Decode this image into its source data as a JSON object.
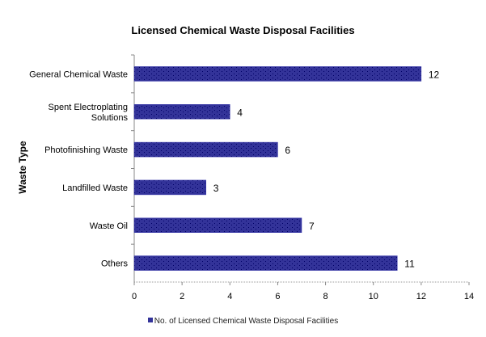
{
  "chart_data": {
    "type": "bar",
    "orientation": "horizontal",
    "title": "Licensed Chemical Waste Disposal Facilities",
    "xlabel": "",
    "ylabel": "Waste Type",
    "categories": [
      "General Chemical Waste",
      "Spent Electroplating Solutions",
      "Photofinishing Waste",
      "Landfilled Waste",
      "Waste Oil",
      "Others"
    ],
    "series": [
      {
        "name": "No. of Licensed Chemical Waste Disposal Facilities",
        "values": [
          12,
          4,
          6,
          3,
          7,
          11
        ]
      }
    ],
    "xlim": [
      0,
      14
    ],
    "xticks": [
      0,
      2,
      4,
      6,
      8,
      10,
      12,
      14
    ],
    "grid": false,
    "legend": "bottom",
    "bar_color": "#333399"
  }
}
